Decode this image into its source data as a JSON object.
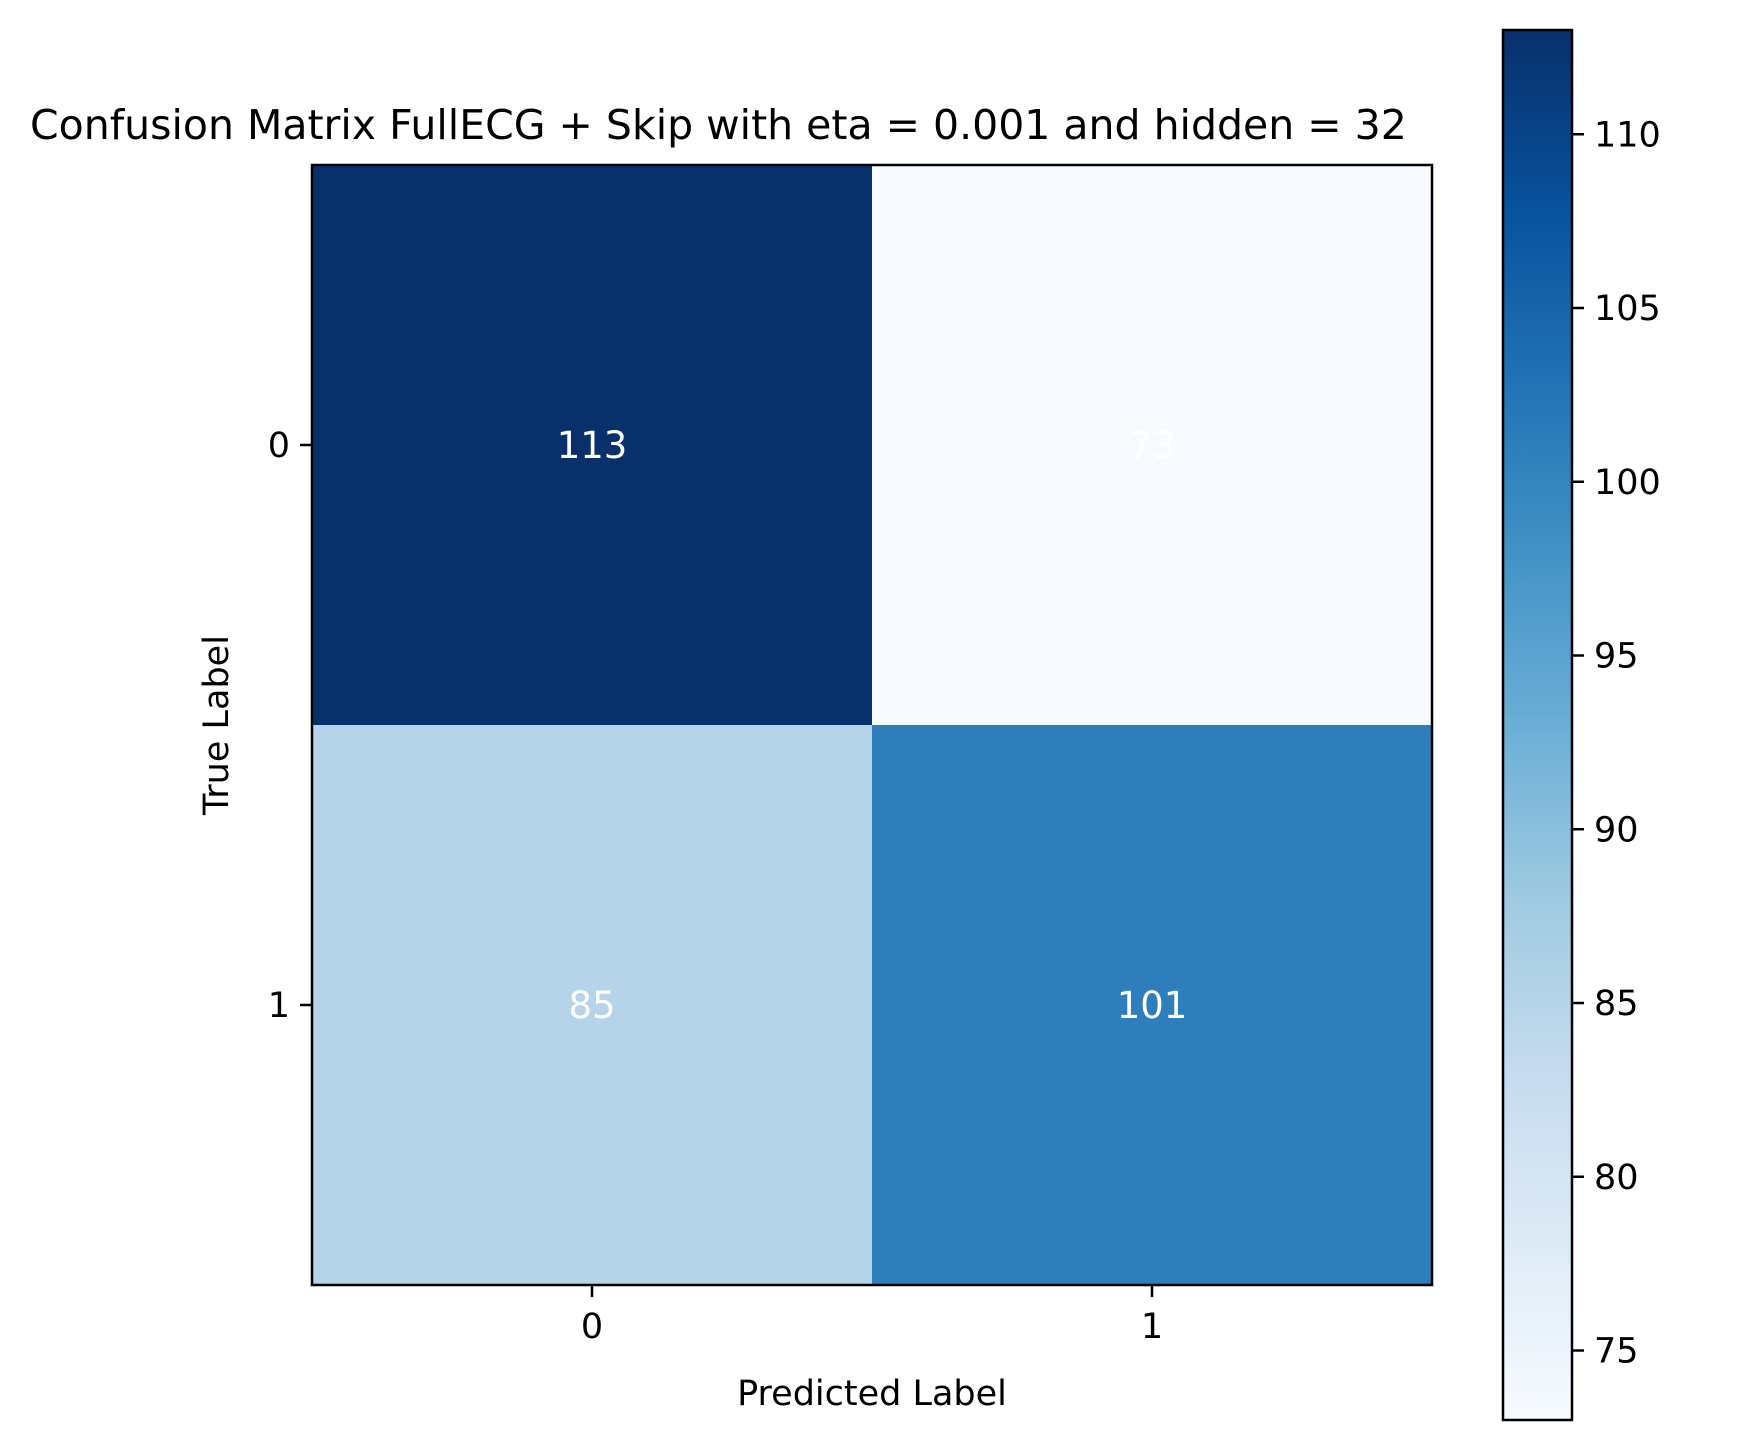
{
  "chart_data": {
    "type": "heatmap",
    "title": "Confusion Matrix FullECG + Skip with eta = 0.001 and hidden = 32",
    "xlabel": "Predicted Label",
    "ylabel": "True Label",
    "x_categories": [
      "0",
      "1"
    ],
    "y_categories": [
      "0",
      "1"
    ],
    "matrix": [
      [
        113,
        73
      ],
      [
        85,
        101
      ]
    ],
    "cell_label_color": "#ffffff",
    "colormap": "Blues",
    "colorbar": {
      "range": [
        73,
        113
      ],
      "ticks": [
        75,
        80,
        85,
        90,
        95,
        100,
        105,
        110
      ],
      "stops": [
        "#f7fbff",
        "#deebf7",
        "#c6dbef",
        "#9ecae1",
        "#6baed6",
        "#4292c6",
        "#2171b5",
        "#08519c",
        "#08306b"
      ]
    },
    "grid": false
  }
}
